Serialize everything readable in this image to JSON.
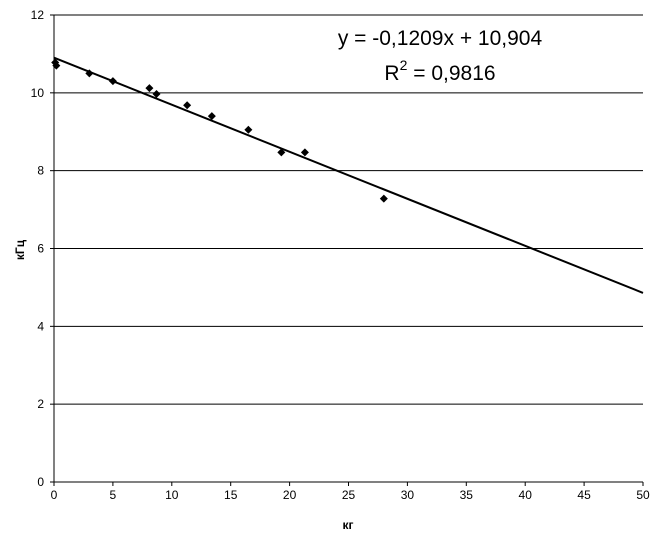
{
  "chart_data": {
    "type": "scatter",
    "xlabel": "кг",
    "ylabel": "кГц",
    "xlim": [
      0,
      50
    ],
    "ylim": [
      0,
      12
    ],
    "x_ticks": [
      0,
      5,
      10,
      15,
      20,
      25,
      30,
      35,
      40,
      45,
      50
    ],
    "y_ticks": [
      0,
      2,
      4,
      6,
      8,
      10,
      12
    ],
    "grid": "horizontal",
    "legend": "none",
    "marker": "diamond",
    "points": [
      {
        "x": 0.1,
        "y": 10.78
      },
      {
        "x": 0.2,
        "y": 10.7
      },
      {
        "x": 3.0,
        "y": 10.5
      },
      {
        "x": 5.0,
        "y": 10.3
      },
      {
        "x": 8.1,
        "y": 10.12
      },
      {
        "x": 8.7,
        "y": 9.97
      },
      {
        "x": 11.3,
        "y": 9.68
      },
      {
        "x": 13.4,
        "y": 9.4
      },
      {
        "x": 16.5,
        "y": 9.05
      },
      {
        "x": 19.3,
        "y": 8.47
      },
      {
        "x": 21.3,
        "y": 8.47
      },
      {
        "x": 28.0,
        "y": 7.28
      }
    ],
    "trendline": {
      "slope": -0.1209,
      "intercept": 10.904
    },
    "equation_text": "y = -0,1209x + 10,904",
    "r2_label": "R",
    "r2_sup": "2",
    "r2_value": " = 0,9816"
  }
}
